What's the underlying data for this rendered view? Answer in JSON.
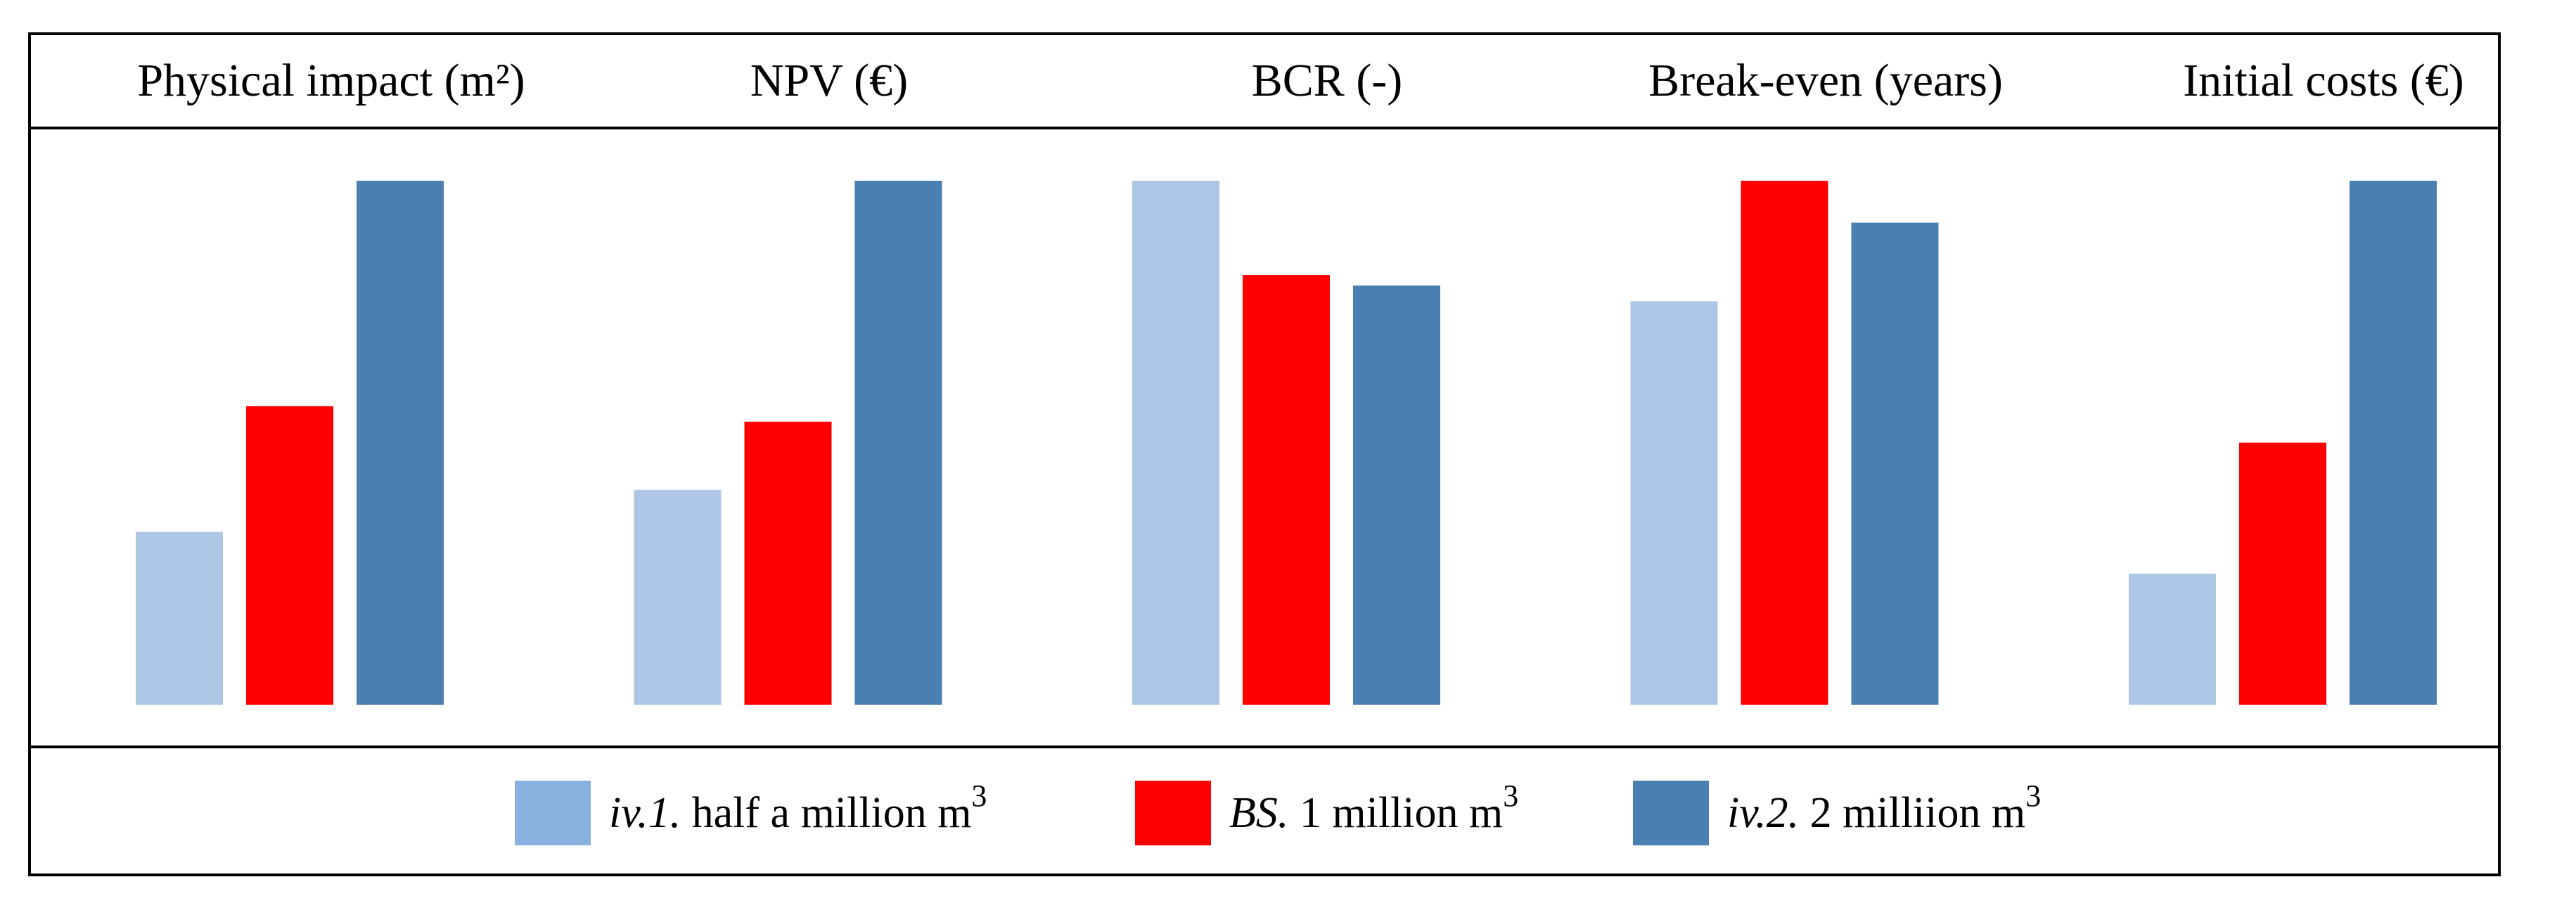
{
  "chart_data": {
    "type": "bar",
    "title": "",
    "xlabel": "",
    "ylabel": "",
    "ylim": [
      0,
      1
    ],
    "normalized": true,
    "categories": [
      "Physical impact (m²)",
      "NPV (€)",
      "BCR (-)",
      "Break-even (years)",
      "Initial costs (€)"
    ],
    "series": [
      {
        "id": "iv1",
        "name": "iv.1. half a million m3",
        "prefix": "iv.1.",
        "text": "half a million m",
        "sup": "3",
        "color": "#adc6e6",
        "swatch_color": "#89b1df",
        "values": [
          0.33,
          0.41,
          1.0,
          0.77,
          0.25
        ]
      },
      {
        "id": "bs",
        "name": "BS. 1 million m3",
        "prefix": "BS.",
        "text": "1 million m",
        "sup": "3",
        "color": "#ff0000",
        "swatch_color": "#ff0000",
        "values": [
          0.57,
          0.54,
          0.82,
          1.0,
          0.5
        ]
      },
      {
        "id": "iv2",
        "name": "iv.2. 2 milliion m3",
        "prefix": "iv.2.",
        "text": "2 milliion m",
        "sup": "3",
        "color": "#4a7fb1",
        "swatch_color": "#4a7fb1",
        "values": [
          1.0,
          1.0,
          0.8,
          0.92,
          1.0
        ]
      }
    ],
    "grid": false,
    "legend_position": "bottom-center"
  }
}
